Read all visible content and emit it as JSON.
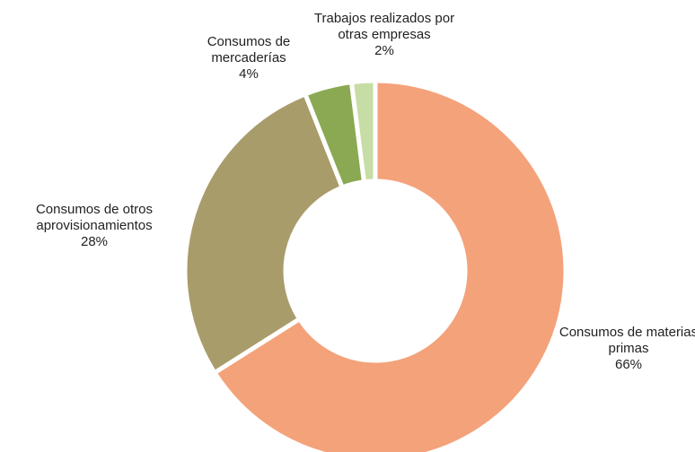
{
  "chart_data": {
    "type": "donut",
    "categories": [
      "Consumos de materias primas",
      "Consumos de otros aprovisionamientos",
      "Consumos de mercaderías",
      "Trabajos realizados por otras empresas"
    ],
    "values": [
      66,
      28,
      4,
      2
    ],
    "value_labels": [
      "66%",
      "28%",
      "4%",
      "2%"
    ],
    "colors": [
      "#f4a27a",
      "#a99c6b",
      "#8aa952",
      "#c7dda6"
    ]
  }
}
